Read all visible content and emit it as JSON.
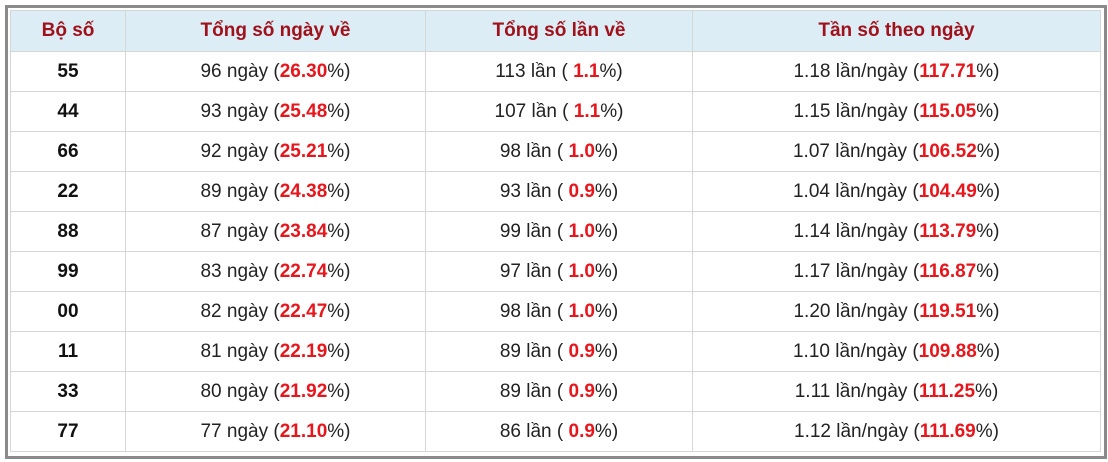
{
  "table": {
    "header": [
      "Bộ số",
      "Tổng số ngày về",
      "Tổng số lần về",
      "Tần số theo ngày"
    ],
    "rows": [
      [
        "55",
        [
          "96 ngày (",
          "26.30",
          "%)"
        ],
        [
          "113 lần ( ",
          "1.1",
          "%)"
        ],
        [
          "1.18 lần/ngày (",
          "117.71",
          "%)"
        ]
      ],
      [
        "44",
        [
          "93 ngày (",
          "25.48",
          "%)"
        ],
        [
          "107 lần ( ",
          "1.1",
          "%)"
        ],
        [
          "1.15 lần/ngày (",
          "115.05",
          "%)"
        ]
      ],
      [
        "66",
        [
          "92 ngày (",
          "25.21",
          "%)"
        ],
        [
          "98 lần ( ",
          "1.0",
          "%)"
        ],
        [
          "1.07 lần/ngày (",
          "106.52",
          "%)"
        ]
      ],
      [
        "22",
        [
          "89 ngày (",
          "24.38",
          "%)"
        ],
        [
          "93 lần ( ",
          "0.9",
          "%)"
        ],
        [
          "1.04 lần/ngày (",
          "104.49",
          "%)"
        ]
      ],
      [
        "88",
        [
          "87 ngày (",
          "23.84",
          "%)"
        ],
        [
          "99 lần ( ",
          "1.0",
          "%)"
        ],
        [
          "1.14 lần/ngày (",
          "113.79",
          "%)"
        ]
      ],
      [
        "99",
        [
          "83 ngày (",
          "22.74",
          "%)"
        ],
        [
          "97 lần ( ",
          "1.0",
          "%)"
        ],
        [
          "1.17 lần/ngày (",
          "116.87",
          "%)"
        ]
      ],
      [
        "00",
        [
          "82 ngày (",
          "22.47",
          "%)"
        ],
        [
          "98 lần ( ",
          "1.0",
          "%)"
        ],
        [
          "1.20 lần/ngày (",
          "119.51",
          "%)"
        ]
      ],
      [
        "11",
        [
          "81 ngày (",
          "22.19",
          "%)"
        ],
        [
          "89 lần ( ",
          "0.9",
          "%)"
        ],
        [
          "1.10 lần/ngày (",
          "109.88",
          "%)"
        ]
      ],
      [
        "33",
        [
          "80 ngày (",
          "21.92",
          "%)"
        ],
        [
          "89 lần ( ",
          "0.9",
          "%)"
        ],
        [
          "1.11 lần/ngày (",
          "111.25",
          "%)"
        ]
      ],
      [
        "77",
        [
          "77 ngày (",
          "21.10",
          "%)"
        ],
        [
          "86 lần ( ",
          "0.9",
          "%)"
        ],
        [
          "1.12 lần/ngày (",
          "111.69",
          "%)"
        ]
      ]
    ]
  }
}
